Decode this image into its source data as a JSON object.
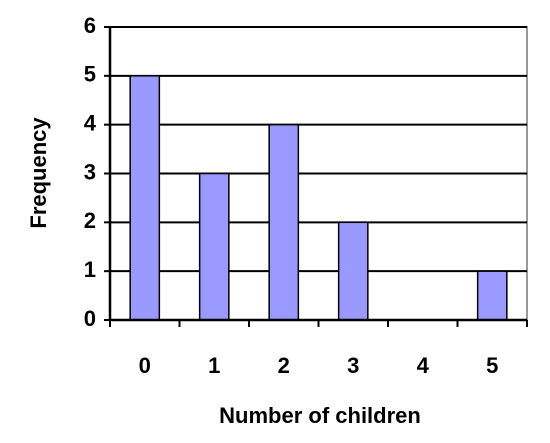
{
  "chart_data": {
    "type": "bar",
    "x_label": "Number of children",
    "y_label": "Frequency",
    "categories": [
      "0",
      "1",
      "2",
      "3",
      "4",
      "5"
    ],
    "values": [
      5,
      3,
      4,
      2,
      0,
      1
    ],
    "color": "#9999ff",
    "ylim": [
      0,
      6
    ],
    "yticks": [
      0,
      1,
      2,
      3,
      4,
      5,
      6
    ],
    "grid": true
  }
}
